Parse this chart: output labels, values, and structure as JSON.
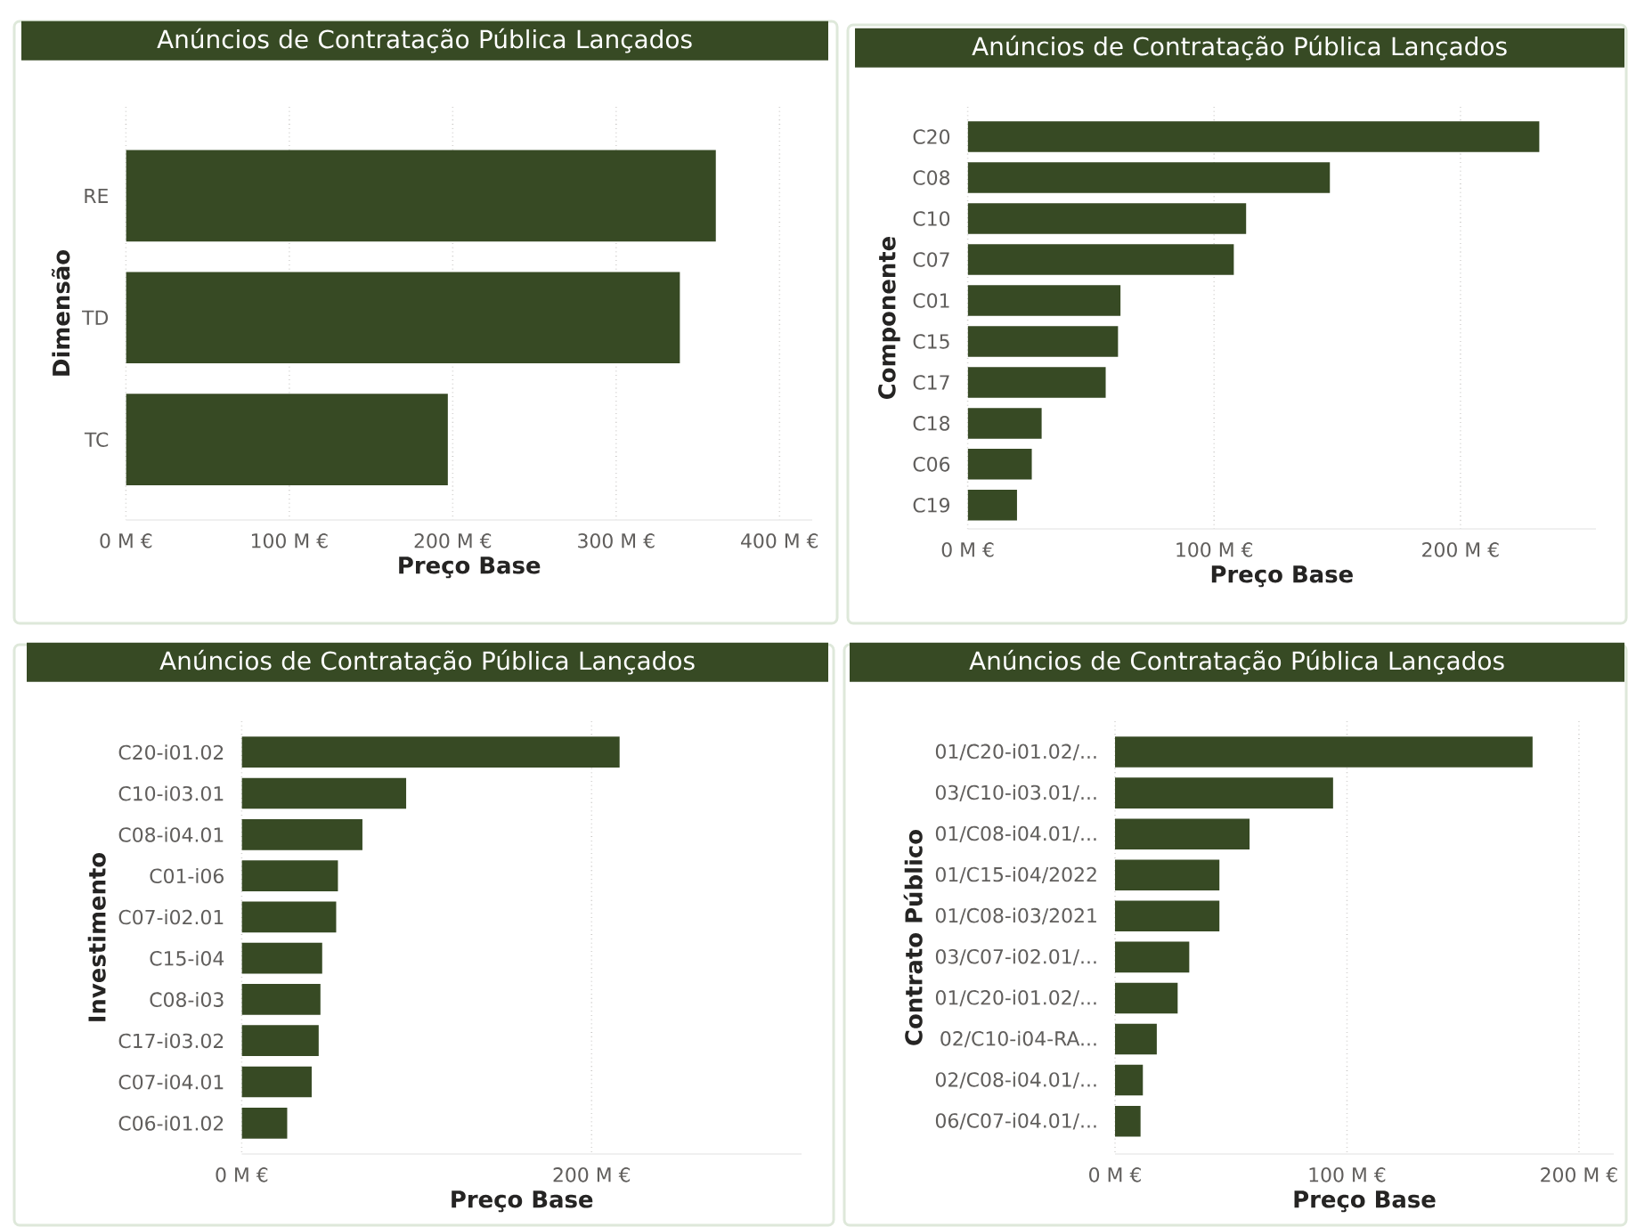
{
  "chart_data": [
    {
      "type": "bar",
      "orientation": "horizontal",
      "title": "Anúncios de Contratação Pública Lançados",
      "xlabel": "Preço Base",
      "ylabel": "Dimensão",
      "categories": [
        "RE",
        "TD",
        "TC"
      ],
      "values": [
        361,
        339,
        197
      ],
      "color": "#374a24",
      "xlim": [
        0,
        420
      ],
      "xticks": [
        {
          "value": 0,
          "label": "0 M €"
        },
        {
          "value": 100,
          "label": "100 M €"
        },
        {
          "value": 200,
          "label": "200 M €"
        },
        {
          "value": 300,
          "label": "300 M €"
        },
        {
          "value": 400,
          "label": "400 M €"
        }
      ],
      "grid": "x"
    },
    {
      "type": "bar",
      "orientation": "horizontal",
      "title": "Anúncios de Contratação Pública Lançados",
      "xlabel": "Preço Base",
      "ylabel": "Componente",
      "categories": [
        "C20",
        "C08",
        "C10",
        "C07",
        "C01",
        "C15",
        "C17",
        "C18",
        "C06",
        "C19"
      ],
      "values": [
        232,
        147,
        113,
        108,
        62,
        61,
        56,
        30,
        26,
        20
      ],
      "color": "#374a24",
      "xlim": [
        0,
        255
      ],
      "xticks": [
        {
          "value": 0,
          "label": "0 M €"
        },
        {
          "value": 100,
          "label": "100 M €"
        },
        {
          "value": 200,
          "label": "200 M €"
        }
      ],
      "grid": "x"
    },
    {
      "type": "bar",
      "orientation": "horizontal",
      "title": "Anúncios de Contratação Pública Lançados",
      "xlabel": "Preço Base",
      "ylabel": "Investimento",
      "categories": [
        "C20-i01.02",
        "C10-i03.01",
        "C08-i04.01",
        "C01-i06",
        "C07-i02.01",
        "C15-i04",
        "C08-i03",
        "C17-i03.02",
        "C07-i04.01",
        "C06-i01.02"
      ],
      "values": [
        216,
        94,
        69,
        55,
        54,
        46,
        45,
        44,
        40,
        26
      ],
      "color": "#374a24",
      "xlim": [
        0,
        320
      ],
      "xticks": [
        {
          "value": 0,
          "label": "0 M €"
        },
        {
          "value": 200,
          "label": "200 M €"
        }
      ],
      "grid": "x"
    },
    {
      "type": "bar",
      "orientation": "horizontal",
      "title": "Anúncios de Contratação Pública Lançados",
      "xlabel": "Preço Base",
      "ylabel": "Contrato Público",
      "categories": [
        "01/C20-i01.02/...",
        "03/C10-i03.01/...",
        "01/C08-i04.01/...",
        "01/C15-i04/2022",
        "01/C08-i03/2021",
        "03/C07-i02.01/...",
        "01/C20-i01.02/...",
        "02/C10-i04-RA...",
        "02/C08-i04.01/...",
        "06/C07-i04.01/..."
      ],
      "values": [
        180,
        94,
        58,
        45,
        45,
        32,
        27,
        18,
        12,
        11
      ],
      "color": "#374a24",
      "xlim": [
        0,
        215
      ],
      "xticks": [
        {
          "value": 0,
          "label": "0 M €"
        },
        {
          "value": 100,
          "label": "100 M €"
        },
        {
          "value": 200,
          "label": "200 M €"
        }
      ],
      "grid": "x"
    }
  ]
}
